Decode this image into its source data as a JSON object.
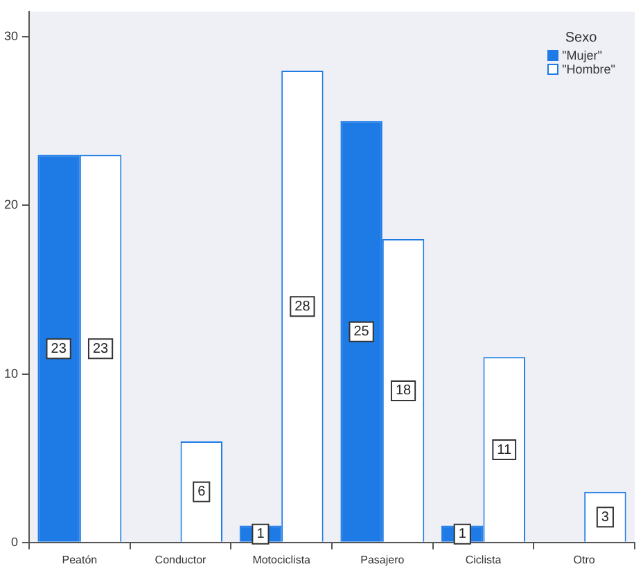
{
  "chart_data": {
    "type": "bar",
    "categories": [
      "Peatón",
      "Conductor",
      "Motociclista",
      "Pasajero",
      "Ciclista",
      "Otro"
    ],
    "series": [
      {
        "name": "\"Mujer\"",
        "color": "#1e7be6",
        "values": [
          23,
          0,
          1,
          25,
          1,
          0
        ],
        "value_labels": [
          "23",
          null,
          "1",
          "25",
          "1",
          null
        ]
      },
      {
        "name": "\"Hombre\"",
        "color": "#ffffff",
        "values": [
          23,
          6,
          28,
          18,
          11,
          3
        ],
        "value_labels": [
          "23",
          "6",
          "28",
          "18",
          "11",
          "3"
        ]
      }
    ],
    "ylim": [
      0,
      31.5
    ],
    "yticks": [
      0,
      10,
      20,
      30
    ],
    "grid": false,
    "legend": "top right",
    "legend_title": "Sexo"
  }
}
